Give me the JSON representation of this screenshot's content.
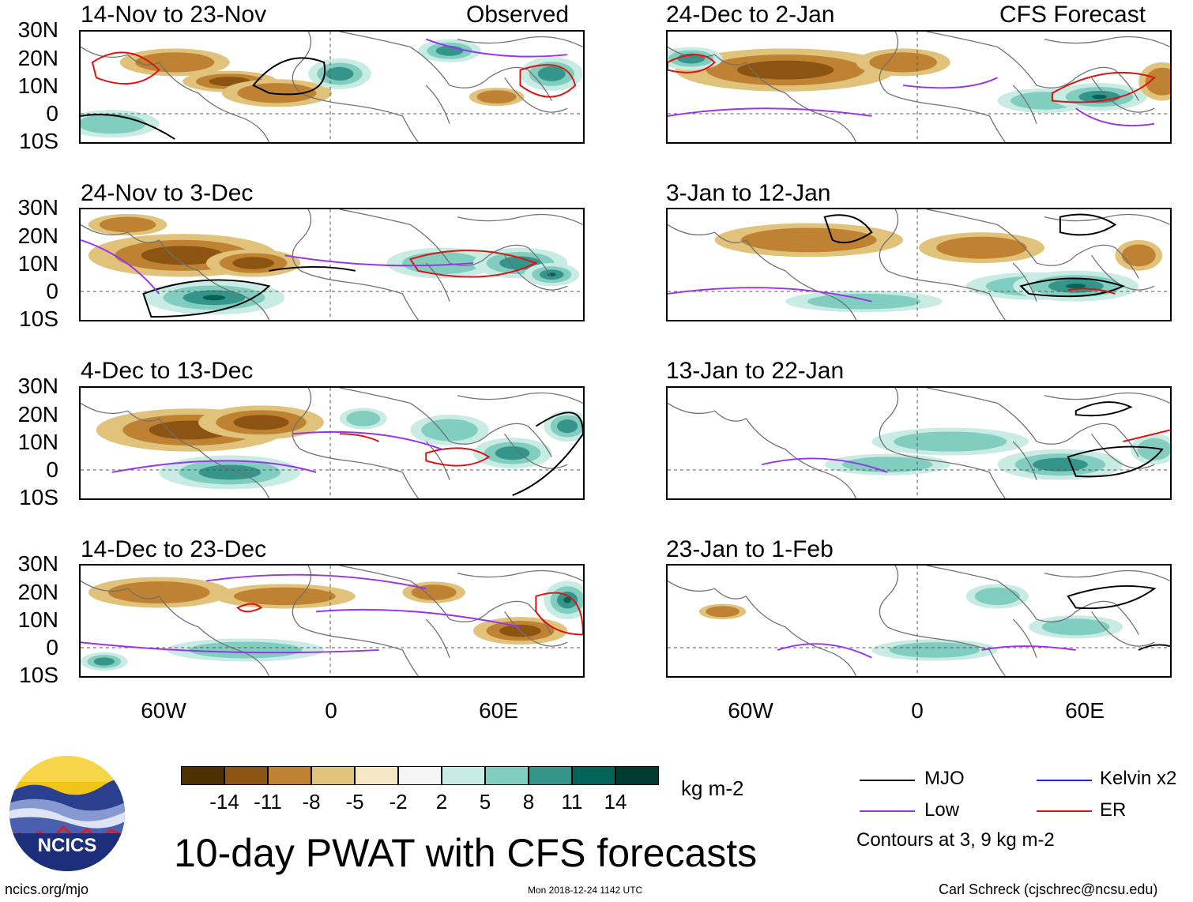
{
  "labels": {
    "observed": "Observed",
    "forecast": "CFS Forecast"
  },
  "panels": [
    {
      "title": "14-Nov to 23-Nov"
    },
    {
      "title": "24-Nov to 3-Dec"
    },
    {
      "title": "4-Dec to 13-Dec"
    },
    {
      "title": "14-Dec to 23-Dec"
    },
    {
      "title": "24-Dec to 2-Jan"
    },
    {
      "title": "3-Jan to 12-Jan"
    },
    {
      "title": "13-Jan to 22-Jan"
    },
    {
      "title": "23-Jan to 1-Feb"
    }
  ],
  "lat_labels": [
    "30N",
    "20N",
    "10N",
    "0",
    "10S"
  ],
  "lon_labels": [
    "60W",
    "0",
    "60E"
  ],
  "colorbar": {
    "colors": [
      "#4d3103",
      "#8c5412",
      "#bf8232",
      "#e0c27b",
      "#f5e7c3",
      "#f5f5f5",
      "#c8ebe4",
      "#81cdc0",
      "#36958a",
      "#036359",
      "#013c30"
    ],
    "labels": [
      "-14",
      "-11",
      "-8",
      "-5",
      "-2",
      "2",
      "5",
      "8",
      "11",
      "14"
    ],
    "units": "kg m-2"
  },
  "legend": {
    "items": [
      {
        "label": "MJO",
        "color": "#000000"
      },
      {
        "label": "Kelvin x2",
        "color": "#2222dd"
      },
      {
        "label": "Low",
        "color": "#9933ee"
      },
      {
        "label": "ER",
        "color": "#dd1111"
      }
    ],
    "note": "Contours at 3, 9 kg m-2"
  },
  "title": "10-day PWAT with CFS forecasts",
  "logo_text": "NCICS",
  "footer": {
    "left": "ncics.org/mjo",
    "center": "Mon 2018-12-24 1142 UTC",
    "right": "Carl Schreck (cjschrec@ncsu.edu)"
  }
}
